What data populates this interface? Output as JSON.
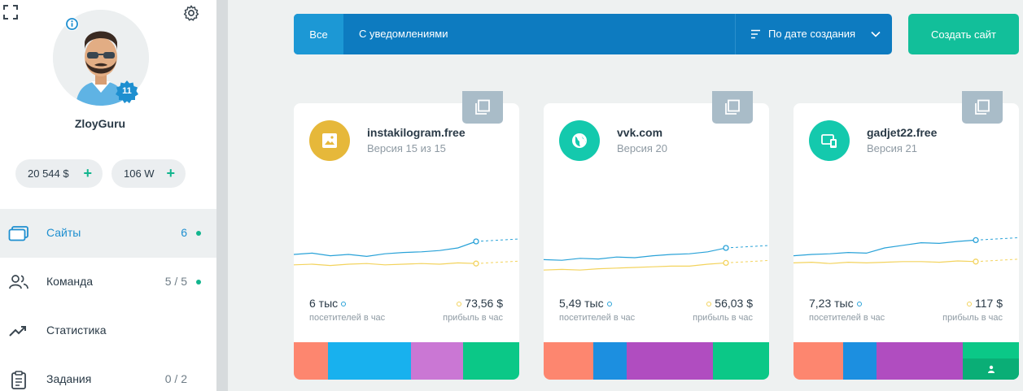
{
  "sidebar": {
    "username": "ZloyGuru",
    "level": "11",
    "balance_money": "20 544 $",
    "balance_w": "106 W",
    "plus": "+",
    "nav": [
      {
        "label": "Сайты",
        "count": "6",
        "icon": "sites-icon",
        "active": true,
        "dot": true
      },
      {
        "label": "Команда",
        "count": "5 / 5",
        "icon": "team-icon",
        "active": false,
        "dot": true
      },
      {
        "label": "Статистика",
        "count": "",
        "icon": "trend-icon",
        "active": false,
        "dot": false
      },
      {
        "label": "Задания",
        "count": "0 / 2",
        "icon": "clipboard-icon",
        "active": false,
        "dot": false
      }
    ]
  },
  "filter_bar": {
    "tab_all": "Все",
    "tab_notifications": "С уведомлениями",
    "sort_label": "По дате создания"
  },
  "create_button": "Создать сайт",
  "colors": {
    "accent_blue": "#1e8fd0",
    "bar_blue": "#0d7bc0",
    "green": "#12bf9a",
    "visitors_line": "#29a2d8",
    "profit_line": "#f3d35d"
  },
  "cards": [
    {
      "name": "instakilogram.free",
      "version": "Версия 15 из 15",
      "icon": "image-icon",
      "icon_color": "#e6b83a",
      "visitors": "6 тыс",
      "visitors_label": "посетителей в час",
      "profit": "73,56 $",
      "profit_label": "прибыль в час",
      "visitors_trend": [
        0.3,
        0.32,
        0.28,
        0.3,
        0.27,
        0.31,
        0.33,
        0.34,
        0.36,
        0.4,
        0.5
      ],
      "profit_trend": [
        0.14,
        0.15,
        0.13,
        0.15,
        0.16,
        0.14,
        0.15,
        0.16,
        0.15,
        0.17,
        0.16
      ],
      "strip": [
        "#fd866f",
        "#18b1ee",
        "#ca77d4",
        "#0bc887"
      ],
      "strip_weights": [
        0.15,
        0.37,
        0.23,
        0.25
      ]
    },
    {
      "name": "vvk.com",
      "version": "Версия 20",
      "icon": "globe-icon",
      "icon_color": "#14c9ad",
      "visitors": "5,49 тыс",
      "visitors_label": "посетителей в час",
      "profit": "56,03 $",
      "profit_label": "прибыль в час",
      "visitors_trend": [
        0.22,
        0.21,
        0.24,
        0.23,
        0.26,
        0.25,
        0.28,
        0.3,
        0.31,
        0.34,
        0.4
      ],
      "profit_trend": [
        0.06,
        0.07,
        0.06,
        0.08,
        0.09,
        0.1,
        0.11,
        0.12,
        0.12,
        0.15,
        0.17
      ],
      "strip": [
        "#fd866f",
        "#1c8fe0",
        "#b04dc0",
        "#0bc887"
      ],
      "strip_weights": [
        0.22,
        0.15,
        0.38,
        0.25
      ]
    },
    {
      "name": "gadjet22.free",
      "version": "Версия 21",
      "icon": "devices-icon",
      "icon_color": "#14c9ad",
      "visitors": "7,23 тыс",
      "visitors_label": "посетителей в час",
      "profit": "117 $",
      "profit_label": "прибыль в час",
      "visitors_trend": [
        0.28,
        0.3,
        0.31,
        0.33,
        0.32,
        0.4,
        0.44,
        0.48,
        0.47,
        0.5,
        0.52
      ],
      "profit_trend": [
        0.17,
        0.18,
        0.16,
        0.18,
        0.17,
        0.18,
        0.19,
        0.19,
        0.18,
        0.2,
        0.19
      ],
      "strip": [
        "#fd866f",
        "#1c8fe0",
        "#b04dc0",
        "#0bc887"
      ],
      "strip_weights": [
        0.22,
        0.15,
        0.38,
        0.25
      ]
    }
  ]
}
